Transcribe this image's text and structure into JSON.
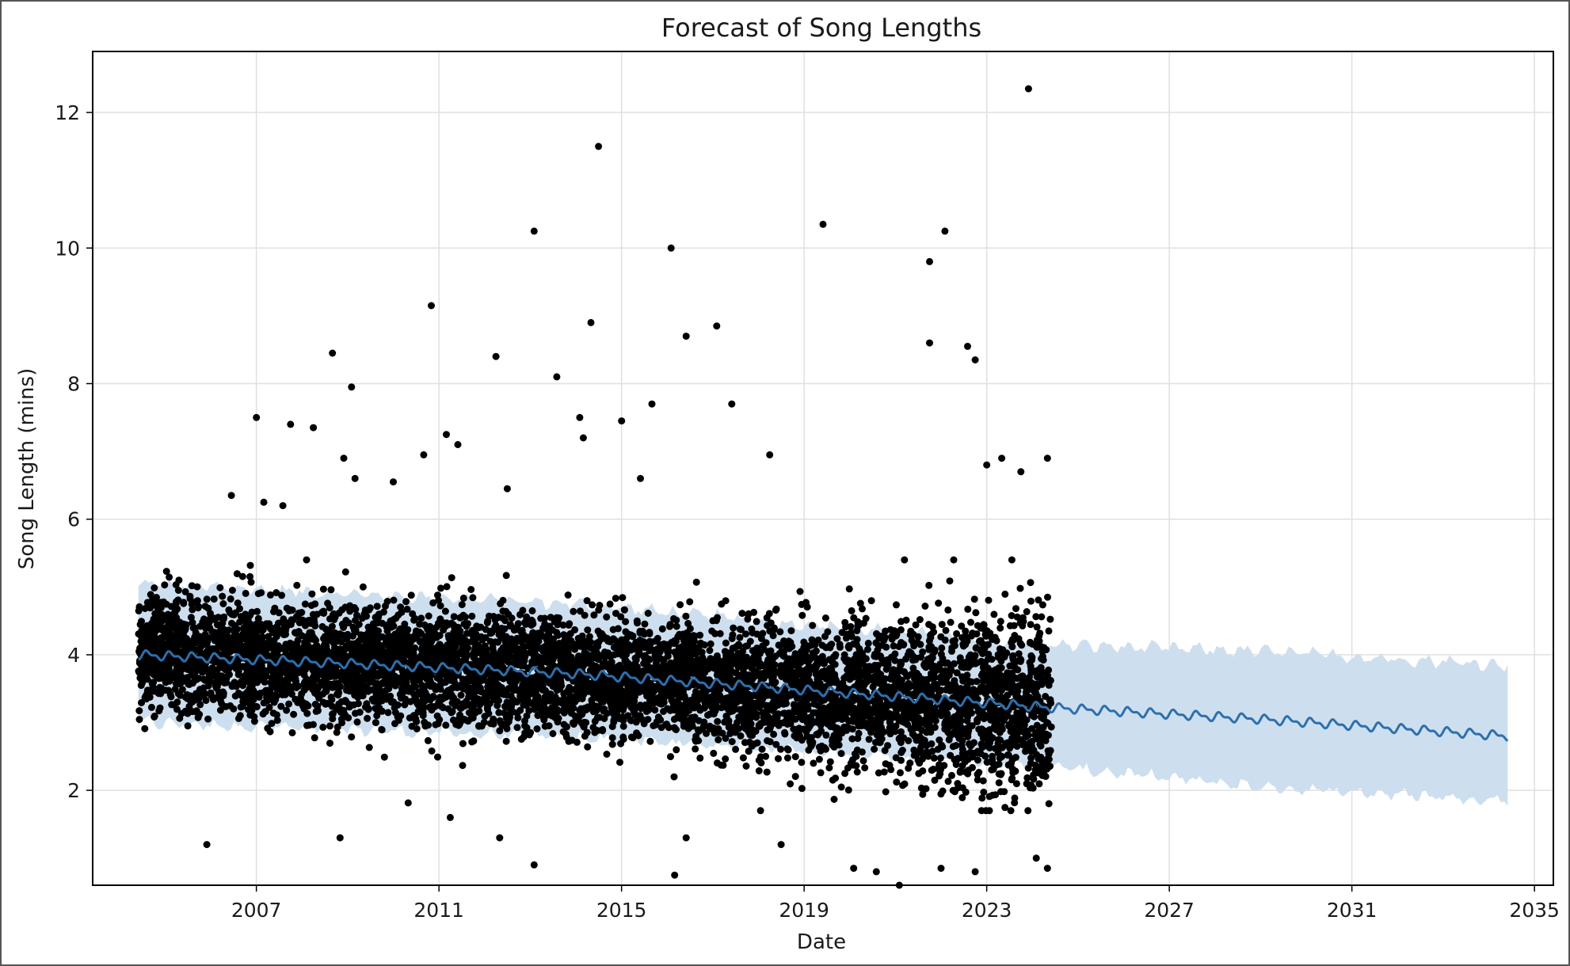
{
  "chart_data": {
    "type": "scatter",
    "title": "Forecast of Song Lengths",
    "xlabel": "Date",
    "ylabel": "Song Length (mins)",
    "xlim": [
      "2003-06-01",
      "2035-06-01"
    ],
    "ylim": [
      0.6,
      12.9
    ],
    "x_ticks": [
      "2007",
      "2011",
      "2015",
      "2019",
      "2023",
      "2027",
      "2031",
      "2035"
    ],
    "y_ticks": [
      2,
      4,
      6,
      8,
      10,
      12
    ],
    "grid": true,
    "colors": {
      "points": "#000000",
      "forecast_line": "#2e6fad",
      "uncertainty_band": "#cddfee"
    },
    "series": [
      {
        "kind": "observed",
        "description": "observed points (outliers listed; dense bulk between ~2.2 and ~5.2 from 2004 to mid-2024)",
        "points": [
          {
            "x": "2005-12-01",
            "y": 1.2
          },
          {
            "x": "2006-06-15",
            "y": 6.35
          },
          {
            "x": "2007-01-01",
            "y": 7.5
          },
          {
            "x": "2007-03-01",
            "y": 6.25
          },
          {
            "x": "2007-08-01",
            "y": 6.2
          },
          {
            "x": "2007-10-01",
            "y": 7.4
          },
          {
            "x": "2008-04-01",
            "y": 7.35
          },
          {
            "x": "2008-09-01",
            "y": 8.45
          },
          {
            "x": "2008-12-01",
            "y": 6.9
          },
          {
            "x": "2009-02-01",
            "y": 7.95
          },
          {
            "x": "2009-03-01",
            "y": 6.6
          },
          {
            "x": "2008-11-01",
            "y": 1.3
          },
          {
            "x": "2010-01-01",
            "y": 6.55
          },
          {
            "x": "2010-09-01",
            "y": 6.95
          },
          {
            "x": "2010-11-01",
            "y": 9.15
          },
          {
            "x": "2011-03-01",
            "y": 7.25
          },
          {
            "x": "2011-06-01",
            "y": 7.1
          },
          {
            "x": "2011-04-01",
            "y": 1.6
          },
          {
            "x": "2012-04-01",
            "y": 8.4
          },
          {
            "x": "2012-05-01",
            "y": 1.3
          },
          {
            "x": "2012-07-01",
            "y": 6.45
          },
          {
            "x": "2013-02-01",
            "y": 10.25
          },
          {
            "x": "2013-02-01",
            "y": 0.9
          },
          {
            "x": "2013-08-01",
            "y": 8.1
          },
          {
            "x": "2014-02-01",
            "y": 7.5
          },
          {
            "x": "2014-03-01",
            "y": 7.2
          },
          {
            "x": "2014-05-01",
            "y": 8.9
          },
          {
            "x": "2014-07-01",
            "y": 11.5
          },
          {
            "x": "2015-01-01",
            "y": 7.45
          },
          {
            "x": "2015-09-01",
            "y": 7.7
          },
          {
            "x": "2015-06-01",
            "y": 6.6
          },
          {
            "x": "2016-02-01",
            "y": 10.0
          },
          {
            "x": "2016-03-01",
            "y": 0.75
          },
          {
            "x": "2016-06-01",
            "y": 8.7
          },
          {
            "x": "2016-06-01",
            "y": 1.3
          },
          {
            "x": "2017-02-01",
            "y": 8.85
          },
          {
            "x": "2017-06-01",
            "y": 7.7
          },
          {
            "x": "2018-04-01",
            "y": 6.95
          },
          {
            "x": "2018-07-01",
            "y": 1.2
          },
          {
            "x": "2019-06-01",
            "y": 10.35
          },
          {
            "x": "2020-02-01",
            "y": 0.85
          },
          {
            "x": "2020-08-01",
            "y": 0.8
          },
          {
            "x": "2021-02-01",
            "y": 0.6
          },
          {
            "x": "2021-10-01",
            "y": 9.8
          },
          {
            "x": "2021-10-01",
            "y": 8.6
          },
          {
            "x": "2022-02-01",
            "y": 10.25
          },
          {
            "x": "2022-01-01",
            "y": 0.85
          },
          {
            "x": "2022-08-01",
            "y": 8.55
          },
          {
            "x": "2022-10-01",
            "y": 8.35
          },
          {
            "x": "2022-10-01",
            "y": 0.8
          },
          {
            "x": "2023-01-01",
            "y": 6.8
          },
          {
            "x": "2023-05-01",
            "y": 6.9
          },
          {
            "x": "2023-10-01",
            "y": 6.7
          },
          {
            "x": "2023-12-01",
            "y": 12.35
          },
          {
            "x": "2024-05-01",
            "y": 6.9
          },
          {
            "x": "2024-02-01",
            "y": 1.0
          },
          {
            "x": "2024-05-01",
            "y": 0.85
          }
        ]
      },
      {
        "kind": "forecast",
        "description": "trend line with seasonal wiggle",
        "x": [
          "2004-06-01",
          "2009-01-01",
          "2014-01-01",
          "2019-01-01",
          "2024-06-01",
          "2029-01-01",
          "2034-06-01"
        ],
        "y": [
          4.0,
          3.87,
          3.72,
          3.48,
          3.22,
          3.05,
          2.8
        ]
      },
      {
        "kind": "uncertainty_band",
        "x": [
          "2004-06-01",
          "2009-01-01",
          "2014-01-01",
          "2019-01-01",
          "2024-06-01",
          "2029-01-01",
          "2034-06-01"
        ],
        "lower": [
          3.0,
          2.9,
          2.78,
          2.6,
          2.35,
          2.05,
          1.85
        ],
        "upper": [
          5.05,
          4.9,
          4.75,
          4.45,
          4.15,
          4.05,
          3.85
        ]
      }
    ]
  }
}
